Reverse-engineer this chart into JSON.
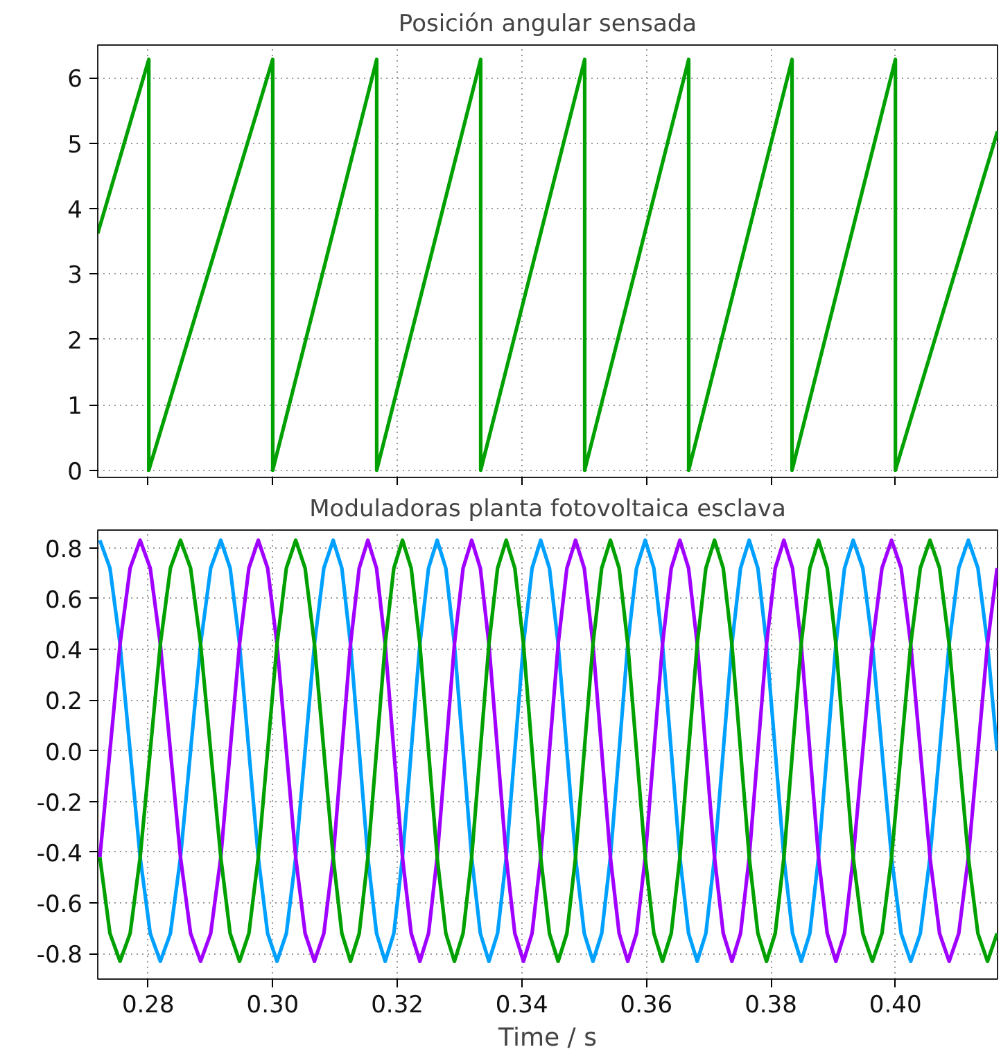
{
  "chart_data": [
    {
      "type": "line",
      "title": "Posición angular sensada",
      "grid": true,
      "tick_labels": "y",
      "marker": "none",
      "line_style": "solid",
      "xlim": [
        0.2719,
        0.4164
      ],
      "ylim": [
        -0.11,
        6.5
      ],
      "xticks": [
        {
          "value": 0.28,
          "label": null
        },
        {
          "value": 0.3,
          "label": null
        },
        {
          "value": 0.32,
          "label": null
        },
        {
          "value": 0.34,
          "label": null
        },
        {
          "value": 0.36,
          "label": null
        },
        {
          "value": 0.38,
          "label": null
        },
        {
          "value": 0.4,
          "label": null
        }
      ],
      "yticks": [
        0,
        1,
        2,
        3,
        4,
        5,
        6
      ],
      "series": [
        {
          "color": "#00a000",
          "x": [
            0.2719,
            0.2801,
            0.2801,
            0.3,
            0.3,
            0.3167,
            0.3167,
            0.3334,
            0.3334,
            0.3501,
            0.3501,
            0.3668,
            0.3668,
            0.3834,
            0.3834,
            0.4,
            0.4,
            0.4164
          ],
          "values": [
            3.62,
            6.28,
            0,
            6.28,
            0,
            6.28,
            0,
            6.28,
            0,
            6.28,
            0,
            6.28,
            0,
            6.28,
            0,
            6.28,
            0,
            5.18
          ]
        }
      ]
    },
    {
      "type": "line",
      "title": "Moduladoras planta fotovoltaica esclava",
      "xlabel": "Time / s",
      "grid": true,
      "marker": "none",
      "line_style": "solid",
      "xlim": [
        0.2719,
        0.4164
      ],
      "ylim": [
        -0.9,
        0.87
      ],
      "xticks": [
        0.28,
        {
          "value": 0.3,
          "label": "0.30"
        },
        0.32,
        0.34,
        0.36,
        0.38,
        {
          "value": 0.4,
          "label": "0.40"
        }
      ],
      "yticks": [
        -0.8,
        -0.6,
        -0.4,
        -0.2,
        {
          "value": 0,
          "label": "0.0"
        },
        0.2,
        0.4,
        0.6,
        0.8
      ],
      "x": [
        0.27224,
        0.27386,
        0.27548,
        0.2771,
        0.27871,
        0.28033,
        0.28195,
        0.28357,
        0.28519,
        0.28681,
        0.28842,
        0.29004,
        0.29166,
        0.29316,
        0.29467,
        0.29617,
        0.29768,
        0.29918,
        0.30069,
        0.30219,
        0.30369,
        0.3052,
        0.3067,
        0.30821,
        0.30971,
        0.3111,
        0.31249,
        0.31389,
        0.31528,
        0.31667,
        0.31806,
        0.31945,
        0.32084,
        0.32224,
        0.32363,
        0.32502,
        0.32641,
        0.3278,
        0.32918,
        0.33057,
        0.33195,
        0.33334,
        0.33472,
        0.33611,
        0.3375,
        0.33888,
        0.34027,
        0.34165,
        0.34304,
        0.34444,
        0.34584,
        0.34724,
        0.34863,
        0.35003,
        0.35143,
        0.35283,
        0.35423,
        0.35563,
        0.35702,
        0.35842,
        0.35982,
        0.36121,
        0.3626,
        0.364,
        0.36539,
        0.36678,
        0.36817,
        0.36956,
        0.37095,
        0.37235,
        0.37374,
        0.37513,
        0.37652,
        0.37791,
        0.3793,
        0.3807,
        0.38209,
        0.38348,
        0.38487,
        0.38626,
        0.38765,
        0.38905,
        0.39044,
        0.39183,
        0.39322,
        0.39476,
        0.3963,
        0.39784,
        0.39938,
        0.40092,
        0.40246,
        0.404,
        0.40555,
        0.40709,
        0.40863,
        0.41017,
        0.41171,
        0.41325,
        0.41479,
        0.41633
      ],
      "series": [
        {
          "color": "#00a0ff",
          "values": [
            0.83,
            0.72,
            0.42,
            0,
            -0.42,
            -0.72,
            -0.83,
            -0.72,
            -0.42,
            0,
            0.42,
            0.72,
            0.83,
            0.72,
            0.42,
            0,
            -0.42,
            -0.72,
            -0.83,
            -0.72,
            -0.42,
            0,
            0.42,
            0.72,
            0.83,
            0.72,
            0.42,
            0,
            -0.42,
            -0.72,
            -0.83,
            -0.72,
            -0.42,
            0,
            0.42,
            0.72,
            0.83,
            0.72,
            0.42,
            0,
            -0.42,
            -0.72,
            -0.83,
            -0.72,
            -0.42,
            0,
            0.42,
            0.72,
            0.83,
            0.72,
            0.42,
            0,
            -0.42,
            -0.72,
            -0.83,
            -0.72,
            -0.42,
            0,
            0.42,
            0.72,
            0.83,
            0.72,
            0.42,
            0,
            -0.42,
            -0.72,
            -0.83,
            -0.72,
            -0.42,
            0,
            0.42,
            0.72,
            0.83,
            0.72,
            0.42,
            0,
            -0.42,
            -0.72,
            -0.83,
            -0.72,
            -0.42,
            0,
            0.42,
            0.72,
            0.83,
            0.72,
            0.42,
            0,
            -0.42,
            -0.72,
            -0.83,
            -0.72,
            -0.42,
            0,
            0.42,
            0.72,
            0.83,
            0.72,
            0.42,
            0
          ]
        },
        {
          "color": "#a000ff",
          "values": [
            -0.42,
            0,
            0.42,
            0.72,
            0.83,
            0.72,
            0.42,
            0,
            -0.42,
            -0.72,
            -0.83,
            -0.72,
            -0.42,
            0,
            0.42,
            0.72,
            0.83,
            0.72,
            0.42,
            0,
            -0.42,
            -0.72,
            -0.83,
            -0.72,
            -0.42,
            0,
            0.42,
            0.72,
            0.83,
            0.72,
            0.42,
            0,
            -0.42,
            -0.72,
            -0.83,
            -0.72,
            -0.42,
            0,
            0.42,
            0.72,
            0.83,
            0.72,
            0.42,
            0,
            -0.42,
            -0.72,
            -0.83,
            -0.72,
            -0.42,
            0,
            0.42,
            0.72,
            0.83,
            0.72,
            0.42,
            0,
            -0.42,
            -0.72,
            -0.83,
            -0.72,
            -0.42,
            0,
            0.42,
            0.72,
            0.83,
            0.72,
            0.42,
            0,
            -0.42,
            -0.72,
            -0.83,
            -0.72,
            -0.42,
            0,
            0.42,
            0.72,
            0.83,
            0.72,
            0.42,
            0,
            -0.42,
            -0.72,
            -0.83,
            -0.72,
            -0.42,
            0,
            0.42,
            0.72,
            0.83,
            0.72,
            0.42,
            0,
            -0.42,
            -0.72,
            -0.83,
            -0.72,
            -0.42,
            0,
            0.42,
            0.72
          ]
        },
        {
          "color": "#00a000",
          "values": [
            -0.42,
            -0.72,
            -0.83,
            -0.72,
            -0.42,
            0,
            0.42,
            0.72,
            0.83,
            0.72,
            0.42,
            0,
            -0.42,
            -0.72,
            -0.83,
            -0.72,
            -0.42,
            0,
            0.42,
            0.72,
            0.83,
            0.72,
            0.42,
            0,
            -0.42,
            -0.72,
            -0.83,
            -0.72,
            -0.42,
            0,
            0.42,
            0.72,
            0.83,
            0.72,
            0.42,
            0,
            -0.42,
            -0.72,
            -0.83,
            -0.72,
            -0.42,
            0,
            0.42,
            0.72,
            0.83,
            0.72,
            0.42,
            0,
            -0.42,
            -0.72,
            -0.83,
            -0.72,
            -0.42,
            0,
            0.42,
            0.72,
            0.83,
            0.72,
            0.42,
            0,
            -0.42,
            -0.72,
            -0.83,
            -0.72,
            -0.42,
            0,
            0.42,
            0.72,
            0.83,
            0.72,
            0.42,
            0,
            -0.42,
            -0.72,
            -0.83,
            -0.72,
            -0.42,
            0,
            0.42,
            0.72,
            0.83,
            0.72,
            0.42,
            0,
            -0.42,
            -0.72,
            -0.83,
            -0.72,
            -0.42,
            0,
            0.42,
            0.72,
            0.83,
            0.72,
            0.42,
            0,
            -0.42,
            -0.72,
            -0.83,
            -0.72
          ]
        }
      ]
    }
  ]
}
